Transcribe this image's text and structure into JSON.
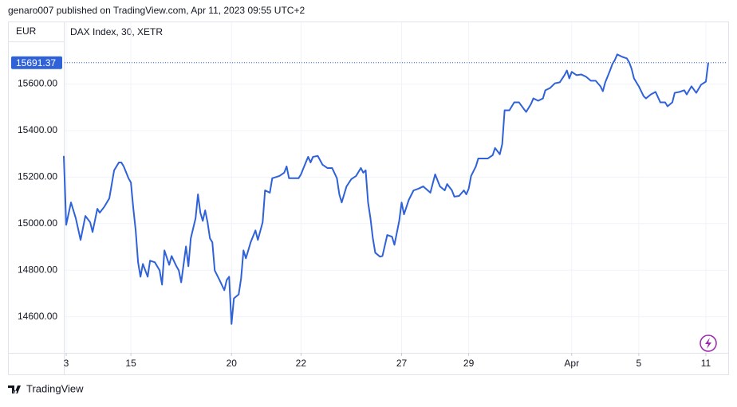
{
  "chart_data": {
    "type": "line",
    "byline": "genaro007 published on TradingView.com, Apr 11, 2023 09:55 UTC+2",
    "currency": "EUR",
    "title": "DAX Index, 30, XETR",
    "brand": "TradingView",
    "last_value": 15691.37,
    "xlim": [
      0,
      277
    ],
    "ylim": [
      14445,
      15865
    ],
    "yticks": [
      {
        "value": 14600,
        "label": "14600.00"
      },
      {
        "value": 14800,
        "label": "14800.00"
      },
      {
        "value": 15000,
        "label": "15000.00"
      },
      {
        "value": 15200,
        "label": "15200.00"
      },
      {
        "value": 15400,
        "label": "15400.00"
      },
      {
        "value": 15600,
        "label": "15600.00"
      }
    ],
    "xticks": [
      {
        "value": 1,
        "label": "3"
      },
      {
        "value": 28,
        "label": "15"
      },
      {
        "value": 70,
        "label": "20"
      },
      {
        "value": 99,
        "label": "22"
      },
      {
        "value": 141,
        "label": "27"
      },
      {
        "value": 169,
        "label": "29"
      },
      {
        "value": 212,
        "label": "Apr"
      },
      {
        "value": 240,
        "label": "5"
      },
      {
        "value": 268,
        "label": "11"
      }
    ],
    "grid": true,
    "x": [
      0,
      1,
      3,
      5,
      7,
      9,
      11,
      12,
      14,
      15,
      17,
      19,
      21,
      23,
      24,
      25,
      27,
      28,
      29,
      30,
      31,
      32,
      33,
      35,
      36,
      38,
      40,
      41,
      42,
      44,
      45,
      47,
      48,
      49,
      51,
      52,
      53,
      55,
      56,
      57,
      58,
      59,
      60,
      61,
      62,
      63,
      65,
      67,
      68,
      69,
      70,
      71,
      73,
      74,
      75,
      76,
      78,
      80,
      81,
      83,
      84,
      86,
      87,
      90,
      92,
      93,
      94,
      96,
      98,
      99,
      101,
      102,
      103,
      104,
      106,
      108,
      110,
      112,
      114,
      115,
      116,
      118,
      120,
      122,
      124,
      125,
      126,
      127,
      128,
      129,
      130,
      132,
      133,
      135,
      137,
      138,
      140,
      141,
      142,
      144,
      146,
      148,
      150,
      153,
      155,
      157,
      159,
      160,
      162,
      163,
      165,
      167,
      168,
      169,
      170,
      172,
      173,
      175,
      177,
      179,
      180,
      182,
      183,
      184,
      186,
      188,
      190,
      192,
      193,
      195,
      196,
      198,
      200,
      201,
      203,
      205,
      207,
      209,
      210,
      211,
      212,
      214,
      216,
      218,
      220,
      222,
      224,
      225,
      226,
      228,
      229,
      230,
      231,
      233,
      235,
      236,
      237,
      238,
      240,
      242,
      243,
      245,
      247,
      249,
      251,
      252,
      254,
      255,
      257,
      259,
      260,
      262,
      264,
      266,
      268,
      269
    ],
    "series": [
      {
        "color": "#2f62d8",
        "values": [
          15291,
          14995,
          15091,
          15023,
          14930,
          15033,
          15006,
          14964,
          15064,
          15047,
          15074,
          15109,
          15229,
          15263,
          15263,
          15246,
          15195,
          15177,
          15067,
          14971,
          14834,
          14772,
          14827,
          14772,
          14841,
          14834,
          14799,
          14738,
          14885,
          14823,
          14861,
          14817,
          14799,
          14748,
          14902,
          14817,
          14937,
          15023,
          15126,
          15047,
          15012,
          15057,
          15006,
          14937,
          14920,
          14799,
          14758,
          14714,
          14758,
          14772,
          14569,
          14679,
          14696,
          14765,
          14885,
          14851,
          14920,
          14971,
          14930,
          15006,
          15143,
          15133,
          15195,
          15205,
          15219,
          15246,
          15195,
          15195,
          15195,
          15212,
          15263,
          15287,
          15263,
          15287,
          15291,
          15253,
          15239,
          15239,
          15195,
          15126,
          15091,
          15160,
          15191,
          15205,
          15239,
          15219,
          15229,
          15091,
          15023,
          14937,
          14875,
          14858,
          14861,
          14951,
          14944,
          14909,
          15012,
          15091,
          15040,
          15102,
          15143,
          15150,
          15160,
          15133,
          15212,
          15160,
          15143,
          15170,
          15143,
          15116,
          15119,
          15143,
          15126,
          15150,
          15205,
          15246,
          15280,
          15280,
          15280,
          15294,
          15325,
          15298,
          15342,
          15487,
          15487,
          15521,
          15521,
          15493,
          15480,
          15514,
          15538,
          15528,
          15538,
          15573,
          15583,
          15603,
          15607,
          15638,
          15658,
          15624,
          15652,
          15638,
          15641,
          15631,
          15614,
          15614,
          15590,
          15569,
          15607,
          15658,
          15686,
          15703,
          15727,
          15717,
          15710,
          15693,
          15665,
          15624,
          15590,
          15548,
          15538,
          15555,
          15566,
          15521,
          15521,
          15504,
          15521,
          15562,
          15566,
          15573,
          15555,
          15590,
          15562,
          15597,
          15610,
          15691.37
        ]
      }
    ]
  }
}
